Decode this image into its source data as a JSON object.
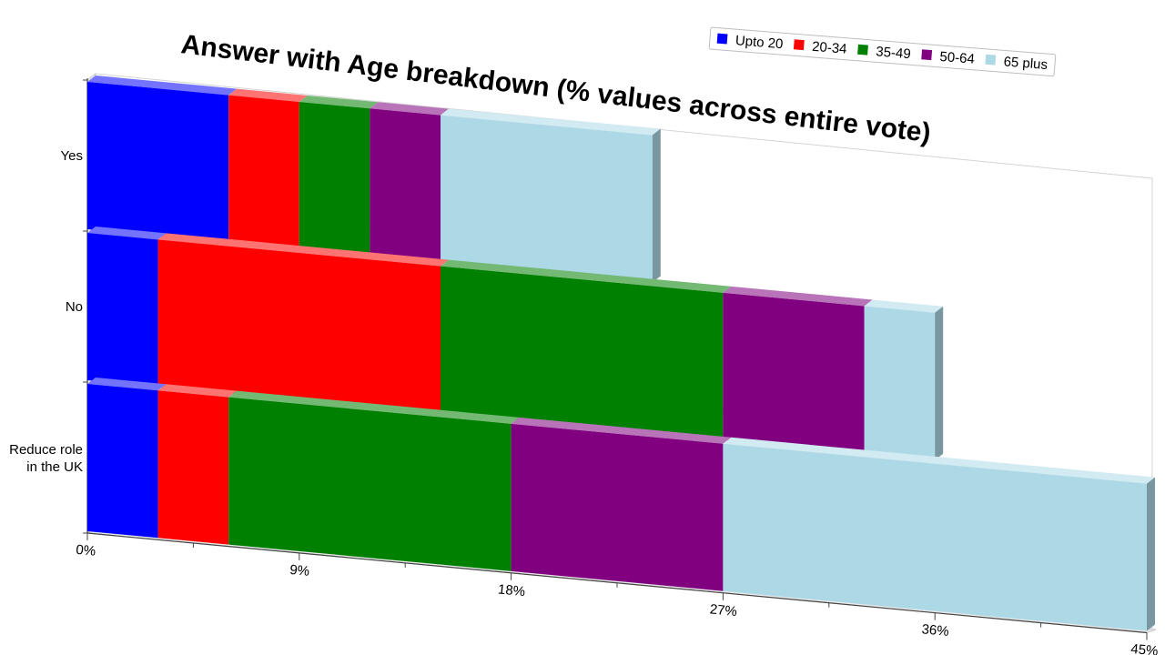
{
  "chart_data": {
    "type": "bar",
    "orientation": "horizontal",
    "stacked": true,
    "style": "3d-perspective",
    "title": "Answer with Age breakdown (% values across entire vote)",
    "categories": [
      "Yes",
      "No",
      "Reduce role in the UK"
    ],
    "category_label_lines": [
      [
        "Yes"
      ],
      [
        "No"
      ],
      [
        "Reduce role",
        "in the UK"
      ]
    ],
    "series": [
      {
        "name": "Upto 20",
        "color": "#0000ff",
        "values": [
          6,
          3,
          3
        ]
      },
      {
        "name": "20-34",
        "color": "#ff0000",
        "values": [
          3,
          12,
          3
        ]
      },
      {
        "name": "35-49",
        "color": "#008000",
        "values": [
          3,
          12,
          12
        ]
      },
      {
        "name": "50-64",
        "color": "#800080",
        "values": [
          3,
          6,
          9
        ]
      },
      {
        "name": "65 plus",
        "color": "#add8e6",
        "values": [
          9,
          3,
          18
        ]
      }
    ],
    "x_ticks": [
      "0%",
      "9%",
      "18%",
      "27%",
      "36%",
      "45%"
    ],
    "xlim": [
      0,
      45
    ],
    "xlabel": "",
    "ylabel": "",
    "legend_position": "top-right",
    "grid": false
  }
}
